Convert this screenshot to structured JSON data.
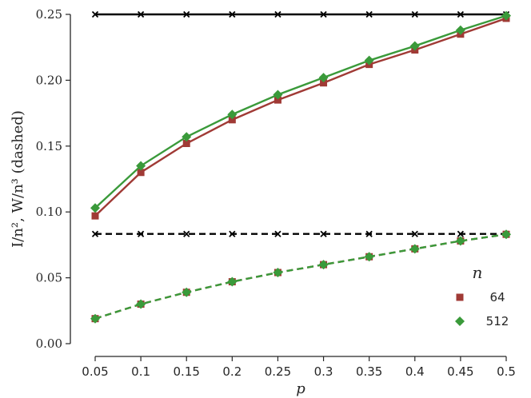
{
  "chart_data": {
    "type": "line",
    "xlabel": "p",
    "ylabel": "I/n², W/n³ (dashed)",
    "xlim": [
      0.05,
      0.5
    ],
    "ylim": [
      0.0,
      0.25
    ],
    "x": [
      0.05,
      0.1,
      0.15,
      0.2,
      0.25,
      0.3,
      0.35,
      0.4,
      0.45,
      0.5
    ],
    "x_tick_labels": [
      "0.05",
      "0.1",
      "0.15",
      "0.2",
      "0.25",
      "0.3",
      "0.35",
      "0.4",
      "0.45",
      "0.5"
    ],
    "y_ticks": [
      0.0,
      0.05,
      0.1,
      0.15,
      0.2,
      0.25
    ],
    "y_tick_labels": [
      "0.00",
      "0.05",
      "0.10",
      "0.15",
      "0.20",
      "0.25"
    ],
    "grid": false,
    "legend": {
      "title": "n",
      "placement": "lower-right",
      "entries": [
        {
          "label": "64",
          "color": "#a03a35",
          "marker": "square"
        },
        {
          "label": "512",
          "color": "#3a9a3a",
          "marker": "diamond"
        }
      ]
    },
    "series": [
      {
        "values": [
          0.25,
          0.25,
          0.25,
          0.25,
          0.25,
          0.25,
          0.25,
          0.25,
          0.25,
          0.25
        ],
        "color": "#000000",
        "marker": "x",
        "dashed": false
      },
      {
        "values": [
          0.0833,
          0.0833,
          0.0833,
          0.0833,
          0.0833,
          0.0833,
          0.0833,
          0.0833,
          0.0833,
          0.0833
        ],
        "color": "#000000",
        "marker": "x",
        "dashed": true
      },
      {
        "values": [
          0.097,
          0.13,
          0.152,
          0.17,
          0.185,
          0.198,
          0.212,
          0.223,
          0.235,
          0.247
        ],
        "color": "#a03a35",
        "marker": "square",
        "dashed": false
      },
      {
        "values": [
          0.103,
          0.135,
          0.157,
          0.174,
          0.189,
          0.202,
          0.215,
          0.226,
          0.238,
          0.249
        ],
        "color": "#3a9a3a",
        "marker": "diamond",
        "dashed": false
      },
      {
        "values": [
          0.019,
          0.03,
          0.039,
          0.047,
          0.054,
          0.06,
          0.066,
          0.072,
          0.078,
          0.083
        ],
        "color": "#a03a35",
        "marker": "square",
        "dashed": true
      },
      {
        "values": [
          0.019,
          0.03,
          0.039,
          0.047,
          0.054,
          0.06,
          0.066,
          0.072,
          0.078,
          0.083
        ],
        "color": "#3a9a3a",
        "marker": "diamond",
        "dashed": true
      }
    ]
  }
}
